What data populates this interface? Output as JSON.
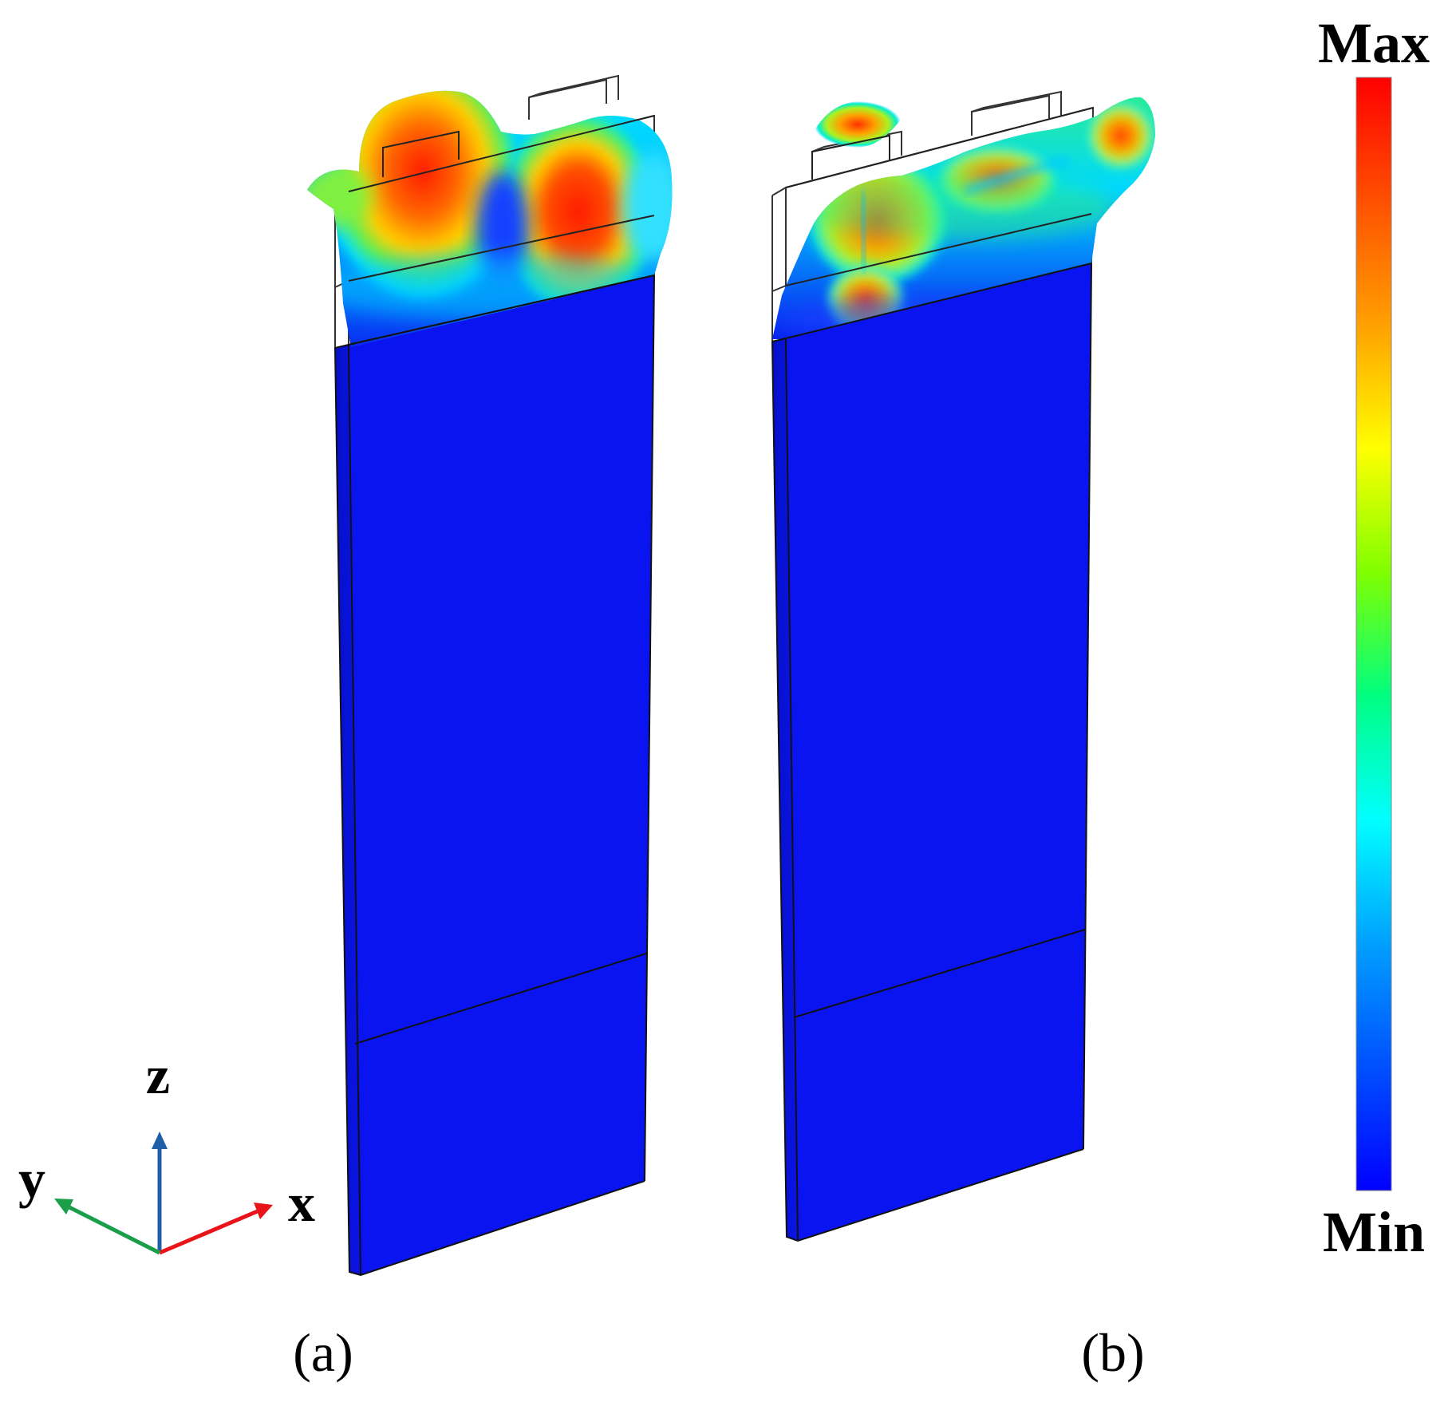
{
  "panels": [
    {
      "id": "a",
      "label": "(a)"
    },
    {
      "id": "b",
      "label": "(b)"
    }
  ],
  "colorbar": {
    "max_label": "Max",
    "min_label": "Min",
    "colors": [
      "#0000ff",
      "#0050ff",
      "#00a0ff",
      "#00ffff",
      "#00ff80",
      "#80ff00",
      "#ffff00",
      "#ffa000",
      "#ff5000",
      "#ff0000"
    ]
  },
  "axes": {
    "x_label": "x",
    "y_label": "y",
    "z_label": "z",
    "x_color": "#e8141a",
    "y_color": "#1a9e4a",
    "z_color": "#1f5fa8"
  },
  "field_colors": {
    "low": "#0a14f0",
    "mid": "#00e5ff",
    "green": "#3cf03c",
    "yellow": "#ffe600",
    "orange": "#ff7a00",
    "high": "#ff1a00"
  }
}
